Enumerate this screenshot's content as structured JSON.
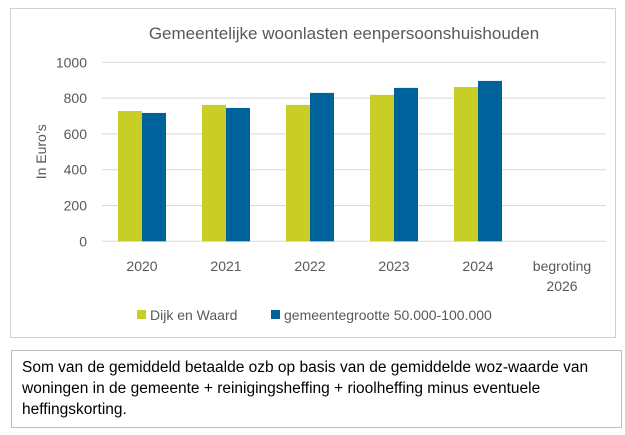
{
  "chart_data": {
    "type": "bar",
    "title": "Gemeentelijke woonlasten eenpersoonshuishouden",
    "xlabel": "",
    "ylabel": "In Euro’s",
    "ylim": [
      0,
      1000
    ],
    "yticks": [
      "0",
      "200",
      "400",
      "600",
      "800",
      "1000"
    ],
    "grid": true,
    "legend_position": "bottom",
    "categories": [
      "2020",
      "2021",
      "2022",
      "2023",
      "2024",
      "begroting 2026"
    ],
    "category_lines": [
      [
        "2020"
      ],
      [
        "2021"
      ],
      [
        "2022"
      ],
      [
        "2023"
      ],
      [
        "2024"
      ],
      [
        "begroting",
        "2026"
      ]
    ],
    "series": [
      {
        "name": "Dijk en Waard",
        "color": "#c8ce26",
        "values": [
          728,
          762,
          762,
          818,
          862,
          null
        ]
      },
      {
        "name": "gemeentegrootte 50.000-100.000",
        "color": "#00629b",
        "values": [
          717,
          745,
          829,
          857,
          896,
          null
        ]
      }
    ]
  },
  "note": "Som van de gemiddeld betaalde ozb op basis van de gemiddelde woz-waarde van woningen in de gemeente + reinigingsheffing + rioolheffing minus eventuele heffingskorting."
}
